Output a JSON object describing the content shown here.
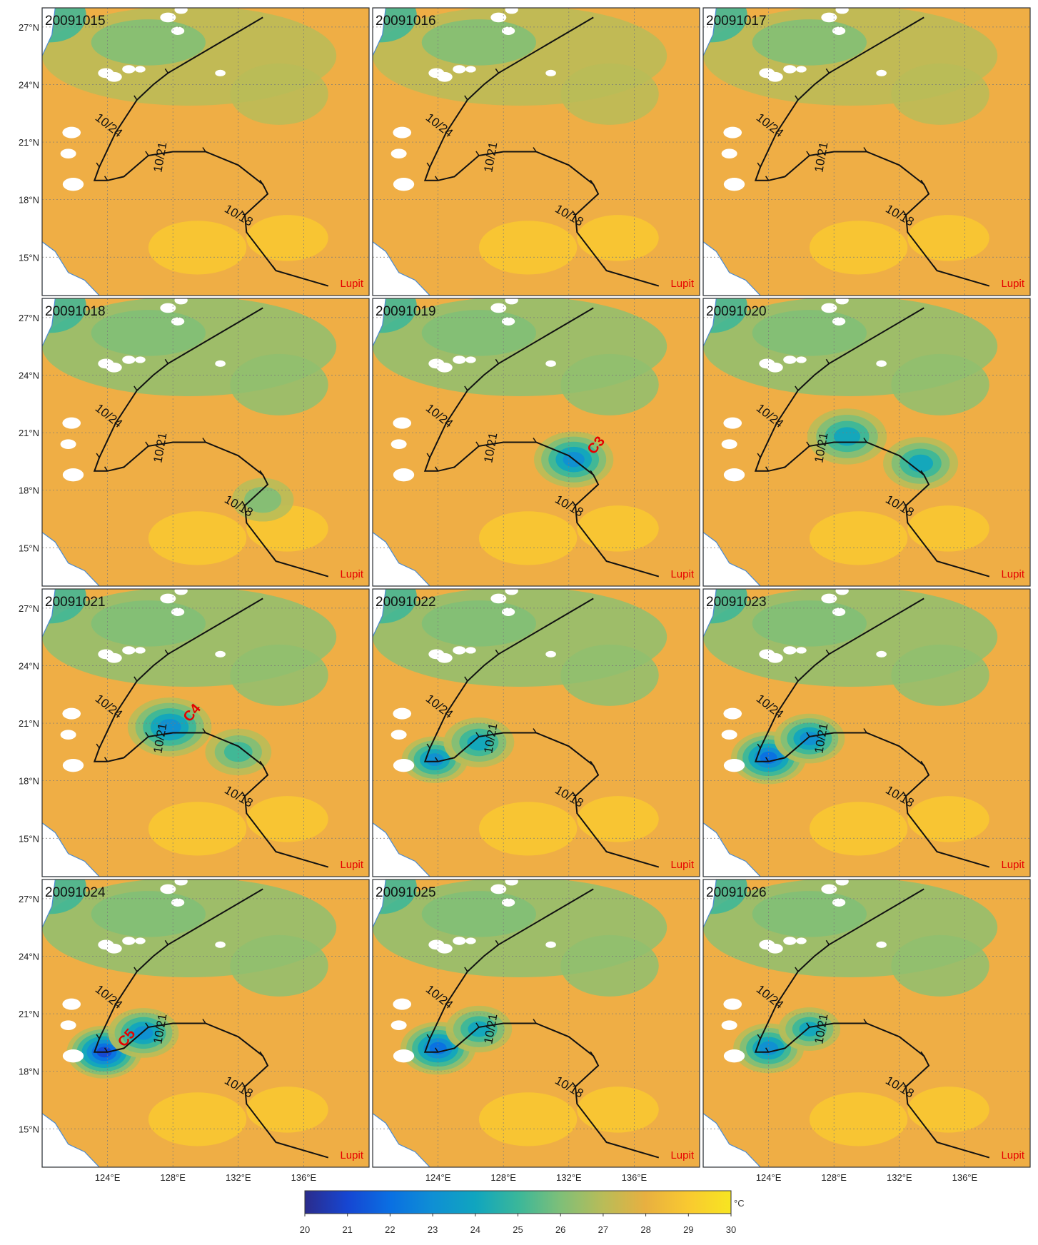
{
  "panels": [
    {
      "date": "20091015",
      "cool": []
    },
    {
      "date": "20091016",
      "cool": []
    },
    {
      "date": "20091017",
      "cool": []
    },
    {
      "date": "20091018",
      "cool": [
        {
          "lon": 133.5,
          "lat": 17.5,
          "r": 1.4,
          "min": 25.5
        }
      ]
    },
    {
      "date": "20091019",
      "cool": [
        {
          "lon": 132.3,
          "lat": 19.6,
          "r": 1.8,
          "min": 23.0
        }
      ],
      "eddy": "C3"
    },
    {
      "date": "20091020",
      "cool": [
        {
          "lon": 128.8,
          "lat": 20.8,
          "r": 1.8,
          "min": 24.0
        },
        {
          "lon": 133.3,
          "lat": 19.4,
          "r": 1.7,
          "min": 23.5
        }
      ]
    },
    {
      "date": "20091021",
      "cool": [
        {
          "lon": 127.8,
          "lat": 20.8,
          "r": 1.9,
          "min": 22.5
        },
        {
          "lon": 132.0,
          "lat": 19.5,
          "r": 1.5,
          "min": 24.5
        }
      ],
      "eddy": "C4"
    },
    {
      "date": "20091022",
      "cool": [
        {
          "lon": 123.8,
          "lat": 19.1,
          "r": 1.5,
          "min": 23.0
        },
        {
          "lon": 126.5,
          "lat": 20.0,
          "r": 1.6,
          "min": 23.5
        }
      ]
    },
    {
      "date": "20091023",
      "cool": [
        {
          "lon": 124.0,
          "lat": 19.2,
          "r": 1.7,
          "min": 21.5
        },
        {
          "lon": 126.5,
          "lat": 20.2,
          "r": 1.6,
          "min": 23.0
        }
      ]
    },
    {
      "date": "20091024",
      "cool": [
        {
          "lon": 123.8,
          "lat": 19.0,
          "r": 1.7,
          "min": 21.0
        },
        {
          "lon": 126.2,
          "lat": 20.0,
          "r": 1.6,
          "min": 22.5
        }
      ],
      "eddy": "C5"
    },
    {
      "date": "20091025",
      "cool": [
        {
          "lon": 124.0,
          "lat": 19.2,
          "r": 1.7,
          "min": 22.0
        },
        {
          "lon": 126.5,
          "lat": 20.2,
          "r": 1.5,
          "min": 23.5
        }
      ]
    },
    {
      "date": "20091026",
      "cool": [
        {
          "lon": 124.0,
          "lat": 19.2,
          "r": 1.6,
          "min": 22.5
        },
        {
          "lon": 126.5,
          "lat": 20.2,
          "r": 1.4,
          "min": 24.0
        }
      ]
    }
  ],
  "track": {
    "name": "Lupit",
    "points": [
      [
        137.5,
        13.5
      ],
      [
        134.3,
        14.3
      ],
      [
        132.5,
        16.3
      ],
      [
        132.4,
        17.2
      ],
      [
        133.8,
        18.3
      ],
      [
        133.5,
        18.8
      ],
      [
        132.0,
        19.8
      ],
      [
        130.0,
        20.5
      ],
      [
        128.0,
        20.5
      ],
      [
        126.5,
        20.3
      ],
      [
        125.0,
        19.2
      ],
      [
        124.0,
        19.0
      ],
      [
        123.2,
        19.0
      ],
      [
        123.5,
        19.7
      ],
      [
        124.5,
        21.5
      ],
      [
        125.8,
        23.2
      ],
      [
        126.8,
        24.0
      ],
      [
        127.7,
        24.6
      ],
      [
        133.5,
        27.5
      ]
    ],
    "labels": [
      {
        "text": "10/24",
        "lon": 123.2,
        "lat": 22.2,
        "angle": 38
      },
      {
        "text": "10/21",
        "lon": 127.3,
        "lat": 19.4,
        "angle": -80
      },
      {
        "text": "10/18",
        "lon": 131.1,
        "lat": 17.4,
        "angle": 30
      }
    ]
  },
  "extent": {
    "lon": [
      120,
      140
    ],
    "lat": [
      13,
      28
    ]
  },
  "y_ticks": [
    "27°N",
    "24°N",
    "21°N",
    "18°N",
    "15°N"
  ],
  "x_ticks": [
    "124°E",
    "128°E",
    "132°E",
    "136°E"
  ],
  "colorbar": {
    "unit": "°C",
    "ticks": [
      "20",
      "21",
      "22",
      "23",
      "24",
      "25",
      "26",
      "27",
      "28",
      "29",
      "30"
    ]
  },
  "colors": {
    "scale": [
      "#2b2c8c",
      "#1646d2",
      "#0a6fe2",
      "#0f8fd4",
      "#10a5bf",
      "#3ab79a",
      "#7fbf78",
      "#b9bc58",
      "#e8b040",
      "#f9c930",
      "#f7e521"
    ],
    "background": "#efae45",
    "track": "#111111",
    "land": "#ffffff",
    "coast": "#4a8ad0",
    "label": "#e60000"
  }
}
